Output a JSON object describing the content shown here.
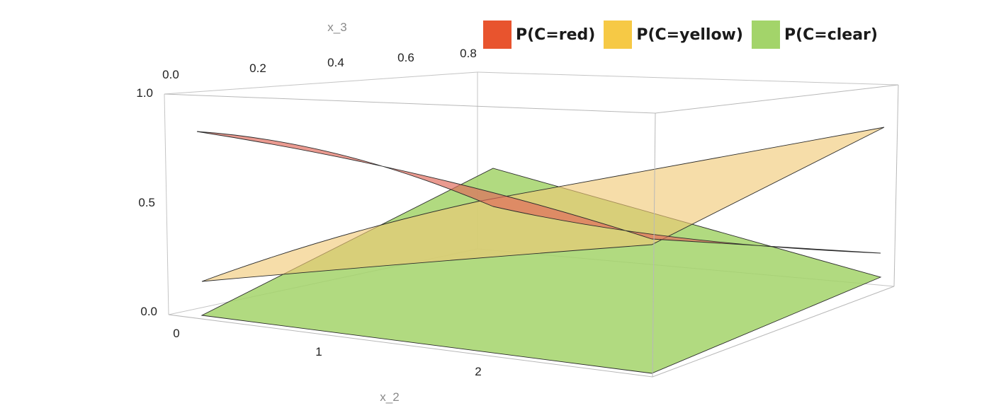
{
  "chart_data": {
    "type": "surface3d",
    "title": "",
    "axes": {
      "x_2": {
        "label": "x_2",
        "ticks": [
          "0",
          "1",
          "2"
        ],
        "range": [
          0,
          3
        ]
      },
      "x_3": {
        "label": "x_3",
        "ticks": [
          "0.0",
          "0.2",
          "0.4",
          "0.6",
          "0.8"
        ],
        "range": [
          0,
          1
        ]
      },
      "z": {
        "label": "",
        "ticks": [
          "0.0",
          "0.5",
          "1.0"
        ],
        "range": [
          0,
          1
        ]
      }
    },
    "legend_position": "top-right",
    "series": [
      {
        "name": "P(C=red)",
        "color": "#e8542e",
        "corners": {
          "x2_0_x3_0": 0.87,
          "x2_3_x3_0": 0.26,
          "x2_0_x3_1": 0.8,
          "x2_3_x3_1": 0.27
        }
      },
      {
        "name": "P(C=yellow)",
        "color": "#f6c945",
        "corners": {
          "x2_0_x3_0": 0.12,
          "x2_3_x3_0": 0.54,
          "x2_0_x3_1": 0.17,
          "x2_3_x3_1": 0.88
        }
      },
      {
        "name": "P(C=clear)",
        "color": "#a3d46a",
        "corners": {
          "x2_0_x3_0": 0.0,
          "x2_3_x3_0": 0.0,
          "x2_0_x3_1": 0.24,
          "x2_3_x3_1": 0.14
        }
      }
    ]
  }
}
